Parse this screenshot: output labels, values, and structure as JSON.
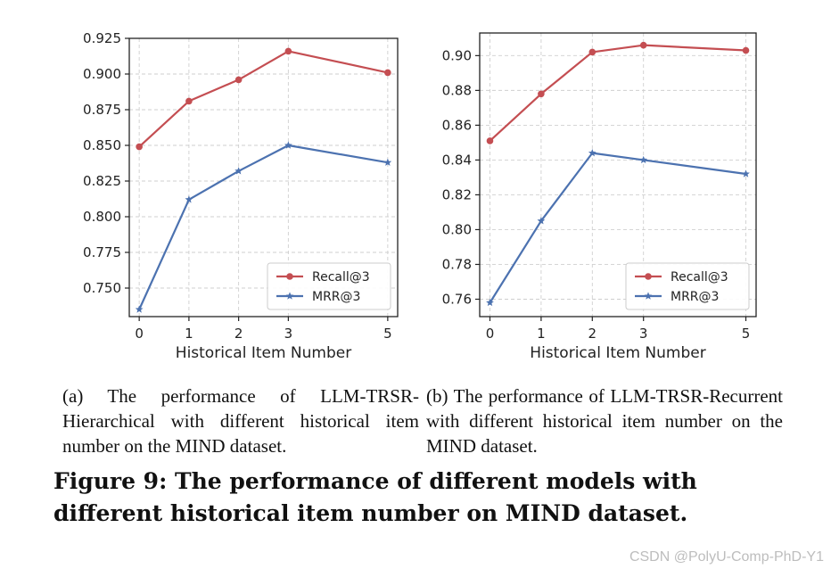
{
  "chart_data": [
    {
      "type": "line",
      "title": "",
      "xlabel": "Historical Item Number",
      "ylabel": "",
      "x": [
        0,
        1,
        2,
        3,
        5
      ],
      "x_ticks": [
        "0",
        "1",
        "2",
        "3",
        "5"
      ],
      "ylim": [
        0.73,
        0.925
      ],
      "y_ticks": [
        "0.750",
        "0.775",
        "0.800",
        "0.825",
        "0.850",
        "0.875",
        "0.900",
        "0.925"
      ],
      "grid": true,
      "legend_position": "bottom-right",
      "series": [
        {
          "name": "Recall@3",
          "color": "#c44e52",
          "marker": "circle",
          "values": [
            0.849,
            0.881,
            0.896,
            0.916,
            0.901
          ]
        },
        {
          "name": "MRR@3",
          "color": "#4c72b0",
          "marker": "star",
          "values": [
            0.735,
            0.812,
            0.832,
            0.85,
            0.838
          ]
        }
      ]
    },
    {
      "type": "line",
      "title": "",
      "xlabel": "Historical Item Number",
      "ylabel": "",
      "x": [
        0,
        1,
        2,
        3,
        5
      ],
      "x_ticks": [
        "0",
        "1",
        "2",
        "3",
        "5"
      ],
      "ylim": [
        0.75,
        0.913
      ],
      "y_ticks": [
        "0.76",
        "0.78",
        "0.80",
        "0.82",
        "0.84",
        "0.86",
        "0.88",
        "0.90"
      ],
      "grid": true,
      "legend_position": "bottom-right",
      "series": [
        {
          "name": "Recall@3",
          "color": "#c44e52",
          "marker": "circle",
          "values": [
            0.851,
            0.878,
            0.902,
            0.906,
            0.903
          ]
        },
        {
          "name": "MRR@3",
          "color": "#4c72b0",
          "marker": "star",
          "values": [
            0.758,
            0.805,
            0.844,
            0.84,
            0.832
          ]
        }
      ]
    }
  ],
  "captions": {
    "a": "(a) The performance of LLM-TRSR-Hierarchical with different historical item number on the MIND dataset.",
    "b": "(b) The performance of LLM-TRSR-Recurrent with different historical item number on the MIND dataset."
  },
  "figure_title": "Figure 9: The performance of different models with different historical item number on MIND dataset.",
  "watermark": "CSDN @PolyU-Comp-PhD-Y1"
}
